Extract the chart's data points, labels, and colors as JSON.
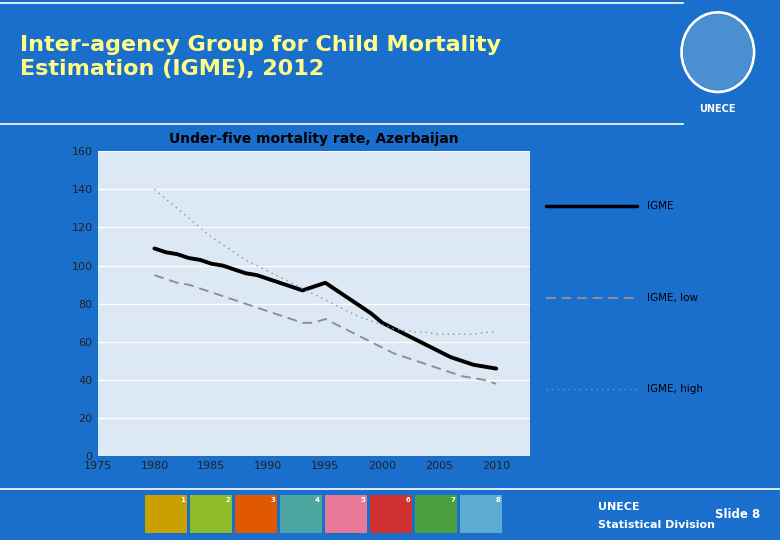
{
  "title": "Inter-agency Group for Child Mortality\nEstimation (IGME), 2012",
  "chart_title": "Under-five mortality rate, Azerbaijan",
  "bg_color": "#1B6FCC",
  "chart_bg_color": "#DCE9F5",
  "outer_bg_color": "#BACFE8",
  "slide_label": "Slide 8",
  "footer_left": "UNECE\nStatistical Division",
  "years_igme": [
    1980,
    1981,
    1982,
    1983,
    1984,
    1985,
    1986,
    1987,
    1988,
    1989,
    1990,
    1991,
    1992,
    1993,
    1994,
    1995,
    1996,
    1997,
    1998,
    1999,
    2000,
    2001,
    2002,
    2003,
    2004,
    2005,
    2006,
    2007,
    2008,
    2009,
    2010
  ],
  "igme": [
    109,
    107,
    106,
    104,
    103,
    101,
    100,
    98,
    96,
    95,
    93,
    91,
    89,
    87,
    89,
    91,
    87,
    83,
    79,
    75,
    70,
    67,
    64,
    61,
    58,
    55,
    52,
    50,
    48,
    47,
    46
  ],
  "igme_low": [
    95,
    93,
    91,
    90,
    88,
    86,
    84,
    82,
    80,
    78,
    76,
    74,
    72,
    70,
    70,
    72,
    69,
    66,
    63,
    60,
    57,
    54,
    52,
    50,
    48,
    46,
    44,
    42,
    41,
    40,
    38
  ],
  "igme_high": [
    140,
    135,
    130,
    125,
    120,
    115,
    111,
    107,
    103,
    100,
    97,
    94,
    91,
    88,
    85,
    82,
    79,
    76,
    73,
    71,
    69,
    67,
    66,
    65,
    65,
    64,
    64,
    64,
    64,
    65,
    65
  ],
  "xmin": 1975,
  "xmax": 2013,
  "ymin": 0,
  "ymax": 160,
  "xticks": [
    1975,
    1980,
    1985,
    1990,
    1995,
    2000,
    2005,
    2010
  ],
  "yticks": [
    0,
    20,
    40,
    60,
    80,
    100,
    120,
    140,
    160
  ],
  "icon_colors": [
    "#C8A000",
    "#8DBB2A",
    "#E05800",
    "#4BA6A0",
    "#E87898",
    "#D03030",
    "#4AA040",
    "#5BACD0"
  ],
  "icon_labels": [
    "1",
    "2",
    "3",
    "4",
    "5",
    "6",
    "7",
    "8"
  ]
}
